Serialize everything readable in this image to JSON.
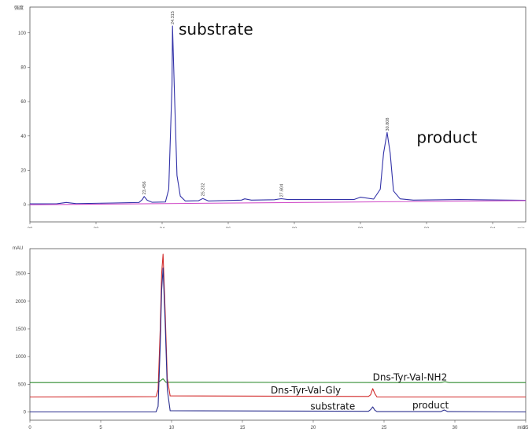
{
  "chart_data": [
    {
      "type": "line",
      "y_unit_label": "强度",
      "x_unit_label": "min",
      "xlim": [
        20,
        35
      ],
      "ylim": [
        -10,
        115
      ],
      "x_ticks": [
        "20",
        "22",
        "24",
        "26",
        "28",
        "30",
        "32",
        "34"
      ],
      "y_ticks": [
        "0",
        "20",
        "40",
        "60",
        "80",
        "100"
      ],
      "peak_labels": [
        {
          "label": "23.456",
          "x": 23.456,
          "y": 5
        },
        {
          "label": "24.315",
          "x": 24.315,
          "y": 104
        },
        {
          "label": "25.232",
          "x": 25.232,
          "y": 4
        },
        {
          "label": "27.604",
          "x": 27.604,
          "y": 3.5
        },
        {
          "label": "30.808",
          "x": 30.808,
          "y": 42
        }
      ],
      "annotations": [
        {
          "text": "substrate",
          "x": 24.5,
          "y": 99
        },
        {
          "text": "product",
          "x": 31.7,
          "y": 36
        }
      ],
      "series": [
        {
          "color": "#3232a8",
          "x": [
            20.0,
            20.8,
            21.1,
            21.4,
            22.5,
            23.3,
            23.4,
            23.456,
            23.55,
            23.7,
            24.1,
            24.2,
            24.3,
            24.315,
            24.38,
            24.45,
            24.55,
            24.7,
            25.1,
            25.232,
            25.4,
            26.4,
            26.5,
            26.7,
            27.4,
            27.604,
            27.8,
            29.8,
            30.0,
            30.4,
            30.6,
            30.7,
            30.808,
            30.9,
            31.0,
            31.2,
            31.6,
            33.0,
            35.0
          ],
          "y": [
            0.5,
            0.5,
            1.3,
            0.6,
            1.0,
            1.3,
            3.0,
            4.8,
            2.6,
            1.4,
            1.6,
            9.0,
            70.0,
            104.0,
            60.0,
            17.0,
            5.0,
            2.2,
            2.3,
            3.6,
            2.2,
            2.7,
            3.4,
            2.7,
            2.9,
            3.5,
            3.0,
            3.0,
            4.4,
            3.3,
            9.0,
            30.0,
            42.0,
            30.0,
            8.0,
            3.4,
            2.7,
            3.0,
            2.6
          ]
        },
        {
          "color": "#d14fc9",
          "x": [
            20.0,
            35.0
          ],
          "y": [
            0.0,
            2.4
          ]
        }
      ]
    },
    {
      "type": "line",
      "y_unit_label": "mAU",
      "x_unit_label": "min",
      "xlim": [
        0,
        35
      ],
      "ylim": [
        -150,
        2950
      ],
      "x_ticks": [
        "0",
        "5",
        "10",
        "15",
        "20",
        "25",
        "30",
        "35"
      ],
      "y_ticks": [
        "0",
        "500",
        "1000",
        "1500",
        "2000",
        "2500"
      ],
      "annotations": [
        {
          "text": "Dns-Tyr-Val-NH2",
          "x": 24.2,
          "y": 570
        },
        {
          "text": "Dns-Tyr-Val-Gly",
          "x": 17.0,
          "y": 330
        },
        {
          "text": "substrate",
          "x": 19.8,
          "y": 40
        },
        {
          "text": "product",
          "x": 27.0,
          "y": 60
        }
      ],
      "series": [
        {
          "color": "#2e8b2e",
          "x": [
            0,
            9.0,
            9.2,
            9.4,
            9.6,
            29.0,
            29.3,
            29.6,
            35.0
          ],
          "y": [
            530,
            530,
            560,
            600,
            535,
            530,
            545,
            530,
            530
          ]
        },
        {
          "color": "#d22a2a",
          "x": [
            0,
            8.9,
            9.05,
            9.2,
            9.3,
            9.4,
            9.55,
            9.7,
            9.9,
            23.9,
            24.05,
            24.2,
            24.35,
            24.5,
            35.0
          ],
          "y": [
            270,
            275,
            400,
            1500,
            2500,
            2850,
            1800,
            600,
            290,
            280,
            310,
            420,
            330,
            270,
            270
          ]
        },
        {
          "color": "#2b2f8f",
          "x": [
            0,
            8.9,
            9.05,
            9.2,
            9.3,
            9.4,
            9.55,
            9.7,
            9.9,
            23.9,
            24.05,
            24.2,
            24.35,
            24.5,
            29.0,
            29.25,
            29.5,
            35.0
          ],
          "y": [
            0,
            0,
            100,
            1200,
            2200,
            2600,
            1600,
            400,
            20,
            10,
            40,
            90,
            30,
            5,
            5,
            35,
            5,
            0
          ]
        }
      ]
    }
  ]
}
